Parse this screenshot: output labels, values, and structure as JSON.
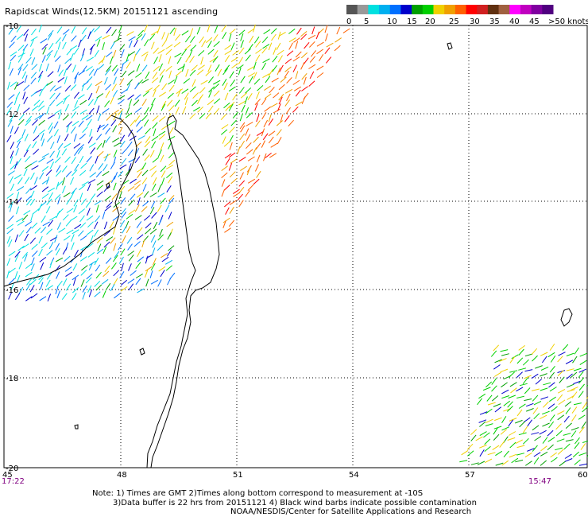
{
  "title": "Rapidscat Winds(12.5KM) 20151121 ascending",
  "colorbar": {
    "swatches": [
      "#555555",
      "#999999",
      "#00e0e0",
      "#00b0f0",
      "#0070ff",
      "#0000cc",
      "#00a000",
      "#00d000",
      "#f0d000",
      "#f0a000",
      "#ff6000",
      "#ff0000",
      "#d02020",
      "#603010",
      "#a06040",
      "#ff00ff",
      "#c000c0",
      "#8000a0",
      "#500080"
    ],
    "tick_labels": [
      "0",
      "5",
      "10",
      "15",
      "20",
      "25",
      "30",
      "35",
      "40",
      "45",
      ">50 knots"
    ]
  },
  "axes": {
    "lat_labels": [
      "-10",
      "-12",
      "-14",
      "-16",
      "-18",
      "-20"
    ],
    "lon_labels": [
      "45",
      "48",
      "51",
      "54",
      "57",
      "60"
    ]
  },
  "times": {
    "left": "17:22",
    "right": "15:47"
  },
  "notes": {
    "line1": "Note: 1) Times are GMT 2)Times along bottom correspond to measurement at -10S",
    "line2": "3)Data buffer is 22 hrs from 20151121 4) Black wind barbs indicate possible contamination",
    "line3": "NOAA/NESDIS/Center for Satellite Applications and Research"
  }
}
